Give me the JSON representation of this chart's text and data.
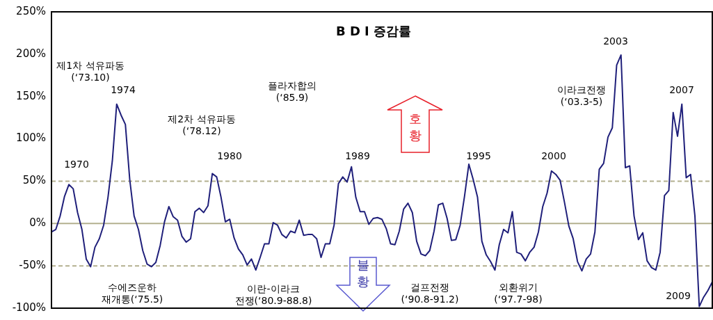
{
  "chart_data": {
    "type": "line",
    "title": "B D I 증감률",
    "categories": [
      null,
      null,
      null,
      null,
      null,
      null,
      null,
      null,
      null,
      null,
      null,
      null,
      null,
      null,
      null,
      null,
      null,
      null,
      null,
      null,
      null,
      null,
      null,
      null,
      null,
      null,
      null,
      null,
      null,
      null,
      null,
      null,
      null,
      null,
      null,
      null,
      null,
      null,
      null,
      null,
      null,
      null,
      null,
      null,
      null,
      null,
      null,
      null,
      null,
      null,
      null,
      null,
      null,
      null,
      null,
      null,
      null,
      null,
      null,
      null,
      null,
      null,
      null,
      null,
      null,
      null,
      null,
      null,
      null,
      null,
      null,
      null,
      null,
      null,
      null,
      null,
      null,
      null,
      null,
      null,
      null,
      null,
      null,
      null,
      null,
      null,
      null,
      null,
      null,
      null,
      null,
      null,
      null,
      null,
      null,
      null,
      null,
      null,
      null,
      null,
      null,
      null,
      null,
      null,
      null,
      null,
      null,
      null,
      null,
      null,
      null,
      null,
      null,
      null,
      null,
      null,
      null,
      null,
      null,
      null,
      null,
      null,
      null,
      null,
      null,
      null,
      null,
      null,
      null,
      null,
      null,
      null,
      null,
      null,
      null,
      null,
      null,
      null,
      null,
      null,
      null,
      null,
      null,
      null,
      null,
      null,
      null,
      null,
      null,
      null,
      null,
      null,
      null
    ],
    "series": [
      {
        "color": "#1f1f7a",
        "values": [
          -10,
          -7,
          9,
          32,
          46,
          41,
          13,
          -7,
          -42,
          -51,
          -28,
          -18,
          -2,
          31,
          74,
          141,
          128,
          117,
          52,
          9,
          -7,
          -32,
          -48,
          -51,
          -46,
          -26,
          2,
          20,
          8,
          4,
          -15,
          -22,
          -18,
          14,
          18,
          13,
          21,
          59,
          55,
          31,
          2,
          5,
          -17,
          -30,
          -37,
          -49,
          -42,
          -55,
          -40,
          -24,
          -24,
          1,
          -2,
          -13,
          -17,
          -9,
          -11,
          4,
          -14,
          -13,
          -13,
          -18,
          -40,
          -24,
          -24,
          -2,
          47,
          55,
          49,
          67,
          31,
          14,
          14,
          -1,
          6,
          7,
          5,
          -6,
          -24,
          -25,
          -9,
          17,
          24,
          13,
          -21,
          -36,
          -38,
          -32,
          -9,
          22,
          24,
          6,
          -20,
          -19,
          -2,
          32,
          70,
          52,
          31,
          -21,
          -37,
          -45,
          -55,
          -25,
          -7,
          -11,
          14,
          -34,
          -36,
          -44,
          -34,
          -28,
          -10,
          20,
          36,
          62,
          58,
          51,
          25,
          -3,
          -18,
          -45,
          -56,
          -42,
          -36,
          -10,
          64,
          71,
          102,
          113,
          187,
          199,
          66,
          68,
          9,
          -19,
          -11,
          -44,
          -52,
          -55,
          -34,
          33,
          39,
          131,
          103,
          141,
          54,
          58,
          9,
          -98,
          -87,
          -79,
          -69
        ]
      }
    ],
    "ylim": [
      -100,
      250
    ],
    "yticks": [
      {
        "value": -100,
        "label": "-100%"
      },
      {
        "value": -50,
        "label": "-50%"
      },
      {
        "value": 0,
        "label": "0%"
      },
      {
        "value": 50,
        "label": "50%"
      },
      {
        "value": 100,
        "label": "100%"
      },
      {
        "value": 150,
        "label": "150%"
      },
      {
        "value": 200,
        "label": "200%"
      },
      {
        "value": 250,
        "label": "250%"
      }
    ],
    "tick_labels": "y",
    "grid": false,
    "legend": false,
    "marker": "none",
    "line_style": "solid",
    "ref_lines": [
      {
        "axis": "y",
        "value": 50,
        "color": "#b3b08f",
        "line_style": "dashed"
      },
      {
        "axis": "y",
        "value": 0,
        "color": "#b3b08f",
        "line_style": "solid"
      },
      {
        "axis": "y",
        "value": -50,
        "color": "#b3b08f",
        "line_style": "dashed"
      }
    ],
    "annotations": [
      "1970",
      "제1차 석유파동\n(‘73.10)",
      "1974",
      "제2차 석유파동\n(‘78.12)",
      "1980",
      "플라자합의\n(‘85.9)",
      "1989",
      "1995",
      "2000",
      "이라크전쟁\n(‘03.3-5)",
      "2003",
      "2007",
      "2009",
      "수에즈운하\n재개통(‘75.5)",
      "이란-이라크\n전쟁(‘80.9-88.8)",
      "걸프전쟁\n(‘90.8-91.2)",
      "외환위기\n(‘97.7-98)",
      "호황",
      "불황"
    ]
  }
}
